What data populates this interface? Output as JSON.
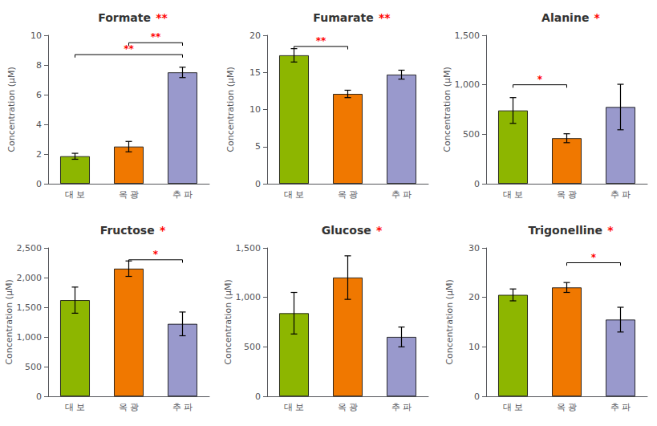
{
  "chart_data": [
    {
      "type": "bar",
      "title": "Formate",
      "title_mark": {
        "text": "**",
        "color": "#ff0000"
      },
      "ylabel": "Concentration (μM)",
      "ylim": [
        0,
        10
      ],
      "yticks": [
        0,
        2,
        4,
        6,
        8,
        10
      ],
      "grid": false,
      "categories": [
        "대 보",
        "옥 광",
        "추 파"
      ],
      "values": [
        1.85,
        2.5,
        7.5
      ],
      "errors": [
        0.2,
        0.35,
        0.35
      ],
      "colors": [
        "#8db600",
        "#f07800",
        "#9999cc"
      ],
      "brackets": [
        {
          "x1": "대 보",
          "x2": "추 파",
          "y": 8.7,
          "label": "**",
          "color": "#ff0000"
        },
        {
          "x1": "옥 광",
          "x2": "추 파",
          "y": 9.5,
          "label": "**",
          "color": "#ff0000"
        }
      ]
    },
    {
      "type": "bar",
      "title": "Fumarate",
      "title_mark": {
        "text": "**",
        "color": "#ff0000"
      },
      "ylabel": "Concentration (μM)",
      "ylim": [
        0,
        20
      ],
      "yticks": [
        0,
        5,
        10,
        15,
        20
      ],
      "grid": false,
      "categories": [
        "대 보",
        "옥 광",
        "추 파"
      ],
      "values": [
        17.3,
        12.1,
        14.7
      ],
      "errors": [
        0.9,
        0.5,
        0.6
      ],
      "colors": [
        "#8db600",
        "#f07800",
        "#9999cc"
      ],
      "brackets": [
        {
          "x1": "대 보",
          "x2": "옥 광",
          "y": 18.5,
          "label": "**",
          "color": "#ff0000"
        }
      ]
    },
    {
      "type": "bar",
      "title": "Alanine",
      "title_mark": {
        "text": "*",
        "color": "#ff0000"
      },
      "ylabel": "Concentration (μM)",
      "ylim": [
        0,
        1500
      ],
      "yticks": [
        0,
        500,
        1000,
        1500
      ],
      "grid": false,
      "categories": [
        "대 보",
        "옥 광",
        "추 파"
      ],
      "values": [
        740,
        460,
        775
      ],
      "errors": [
        130,
        45,
        230
      ],
      "colors": [
        "#8db600",
        "#f07800",
        "#9999cc"
      ],
      "brackets": [
        {
          "x1": "대 보",
          "x2": "옥 광",
          "y": 1000,
          "label": "*",
          "color": "#ff0000"
        }
      ]
    },
    {
      "type": "bar",
      "title": "Fructose",
      "title_mark": {
        "text": "*",
        "color": "#ff0000"
      },
      "ylabel": "Concentration (μM)",
      "ylim": [
        0,
        2500
      ],
      "yticks": [
        0,
        500,
        1000,
        1500,
        2000,
        2500
      ],
      "grid": false,
      "categories": [
        "대 보",
        "옥 광",
        "추 파"
      ],
      "values": [
        1620,
        2150,
        1220
      ],
      "errors": [
        220,
        130,
        200
      ],
      "colors": [
        "#8db600",
        "#f07800",
        "#9999cc"
      ],
      "brackets": [
        {
          "x1": "옥 광",
          "x2": "추 파",
          "y": 2300,
          "label": "*",
          "color": "#ff0000"
        }
      ]
    },
    {
      "type": "bar",
      "title": "Glucose",
      "title_mark": {
        "text": "*",
        "color": "#ff0000"
      },
      "ylabel": "Concentration (μM)",
      "ylim": [
        0,
        1500
      ],
      "yticks": [
        0,
        500,
        1000,
        1500
      ],
      "grid": false,
      "categories": [
        "대 보",
        "옥 광",
        "추 파"
      ],
      "values": [
        840,
        1200,
        600
      ],
      "errors": [
        210,
        220,
        100
      ],
      "colors": [
        "#8db600",
        "#f07800",
        "#9999cc"
      ],
      "brackets": []
    },
    {
      "type": "bar",
      "title": "Trigonelline",
      "title_mark": {
        "text": "*",
        "color": "#ff0000"
      },
      "ylabel": "Concentration (μM)",
      "ylim": [
        0,
        30
      ],
      "yticks": [
        0,
        10,
        20,
        30
      ],
      "grid": false,
      "categories": [
        "대 보",
        "옥 광",
        "추 파"
      ],
      "values": [
        20.5,
        22.0,
        15.5
      ],
      "errors": [
        1.2,
        1.0,
        2.5
      ],
      "colors": [
        "#8db600",
        "#f07800",
        "#9999cc"
      ],
      "brackets": [
        {
          "x1": "옥 광",
          "x2": "추 파",
          "y": 27.0,
          "label": "*",
          "color": "#ff0000"
        }
      ]
    }
  ]
}
